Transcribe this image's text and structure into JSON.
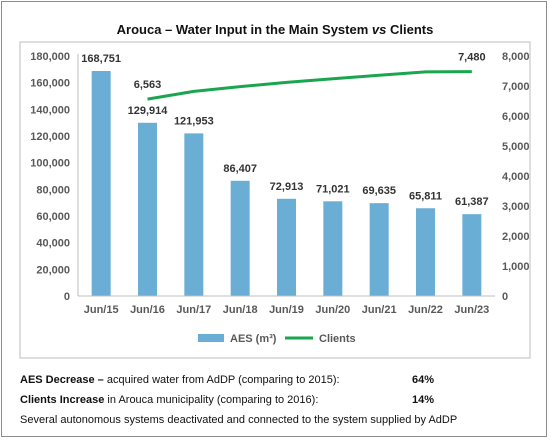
{
  "chart_data": {
    "type": "bar+line",
    "title_parts": {
      "before": "Arouca – Water Input in the Main System ",
      "vs": "vs",
      "after": " Clients"
    },
    "categories": [
      "Jun/15",
      "Jun/16",
      "Jun/17",
      "Jun/18",
      "Jun/19",
      "Jun/20",
      "Jun/21",
      "Jun/22",
      "Jun/23"
    ],
    "series": [
      {
        "name": "AES (m³)",
        "type": "bar",
        "axis": "left",
        "color": "#6aaed6",
        "values": [
          168751,
          129914,
          121953,
          86407,
          72913,
          71021,
          69635,
          65811,
          61387
        ],
        "labels": [
          "168,751",
          "129,914",
          "121,953",
          "86,407",
          "72,913",
          "71,021",
          "69,635",
          "65,811",
          "61,387"
        ]
      },
      {
        "name": "Clients",
        "type": "line",
        "axis": "right",
        "color": "#1aa64f",
        "values": [
          null,
          6563,
          6820,
          6980,
          7120,
          7240,
          7360,
          7470,
          7480
        ],
        "labels": [
          "",
          "6,563",
          "",
          "",
          "",
          "",
          "",
          "",
          "7,480"
        ]
      }
    ],
    "left_axis": {
      "ylim": [
        0,
        180000
      ],
      "ticks": [
        0,
        20000,
        40000,
        60000,
        80000,
        100000,
        120000,
        140000,
        160000,
        180000
      ],
      "tick_labels": [
        "0",
        "20,000",
        "40,000",
        "60,000",
        "80,000",
        "100,000",
        "120,000",
        "140,000",
        "160,000",
        "180,000"
      ]
    },
    "right_axis": {
      "ylim": [
        0,
        8000
      ],
      "ticks": [
        0,
        1000,
        2000,
        3000,
        4000,
        5000,
        6000,
        7000,
        8000
      ],
      "tick_labels": [
        "0",
        "1,000",
        "2,000",
        "3,000",
        "4,000",
        "5,000",
        "6,000",
        "7,000",
        "8,000"
      ]
    },
    "legend_position": "bottom",
    "grid": false
  },
  "notes": {
    "aes": {
      "bold": "AES Decrease –",
      "text": " acquired water from AdDP (comparing to 2015):",
      "value": "64%"
    },
    "clients": {
      "bold": "Clients Increase",
      "text": " in Arouca municipality (comparing to 2016):",
      "value": "14%"
    },
    "footer": "Several autonomous systems deactivated and connected to the system supplied by AdDP"
  }
}
